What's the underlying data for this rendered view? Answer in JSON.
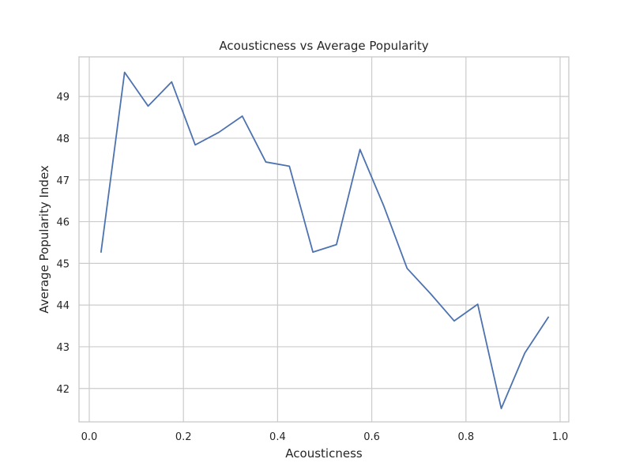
{
  "chart_data": {
    "type": "line",
    "title": "Acousticness vs Average Popularity",
    "xlabel": "Acousticness",
    "ylabel": "Average Popularity Index",
    "xlim": [
      -0.0,
      1.0
    ],
    "ylim": [
      41.2,
      49.95
    ],
    "xticks": [
      0.0,
      0.2,
      0.4,
      0.6,
      0.8,
      1.0
    ],
    "xtick_labels": [
      "0.0",
      "0.2",
      "0.4",
      "0.6",
      "0.8",
      "1.0"
    ],
    "yticks": [
      42,
      43,
      44,
      45,
      46,
      47,
      48,
      49
    ],
    "ytick_labels": [
      "42",
      "43",
      "44",
      "45",
      "46",
      "47",
      "48",
      "49"
    ],
    "grid": true,
    "series": [
      {
        "name": "Average Popularity",
        "color": "#4c72b0",
        "x": [
          0.025,
          0.075,
          0.125,
          0.175,
          0.225,
          0.275,
          0.325,
          0.375,
          0.425,
          0.475,
          0.525,
          0.575,
          0.625,
          0.675,
          0.725,
          0.775,
          0.825,
          0.875,
          0.925,
          0.975
        ],
        "values": [
          45.27,
          49.58,
          48.77,
          49.35,
          47.84,
          48.14,
          48.53,
          47.43,
          47.33,
          45.27,
          45.45,
          47.73,
          46.39,
          44.88,
          44.27,
          43.62,
          44.02,
          41.52,
          42.85,
          43.71
        ]
      }
    ]
  }
}
